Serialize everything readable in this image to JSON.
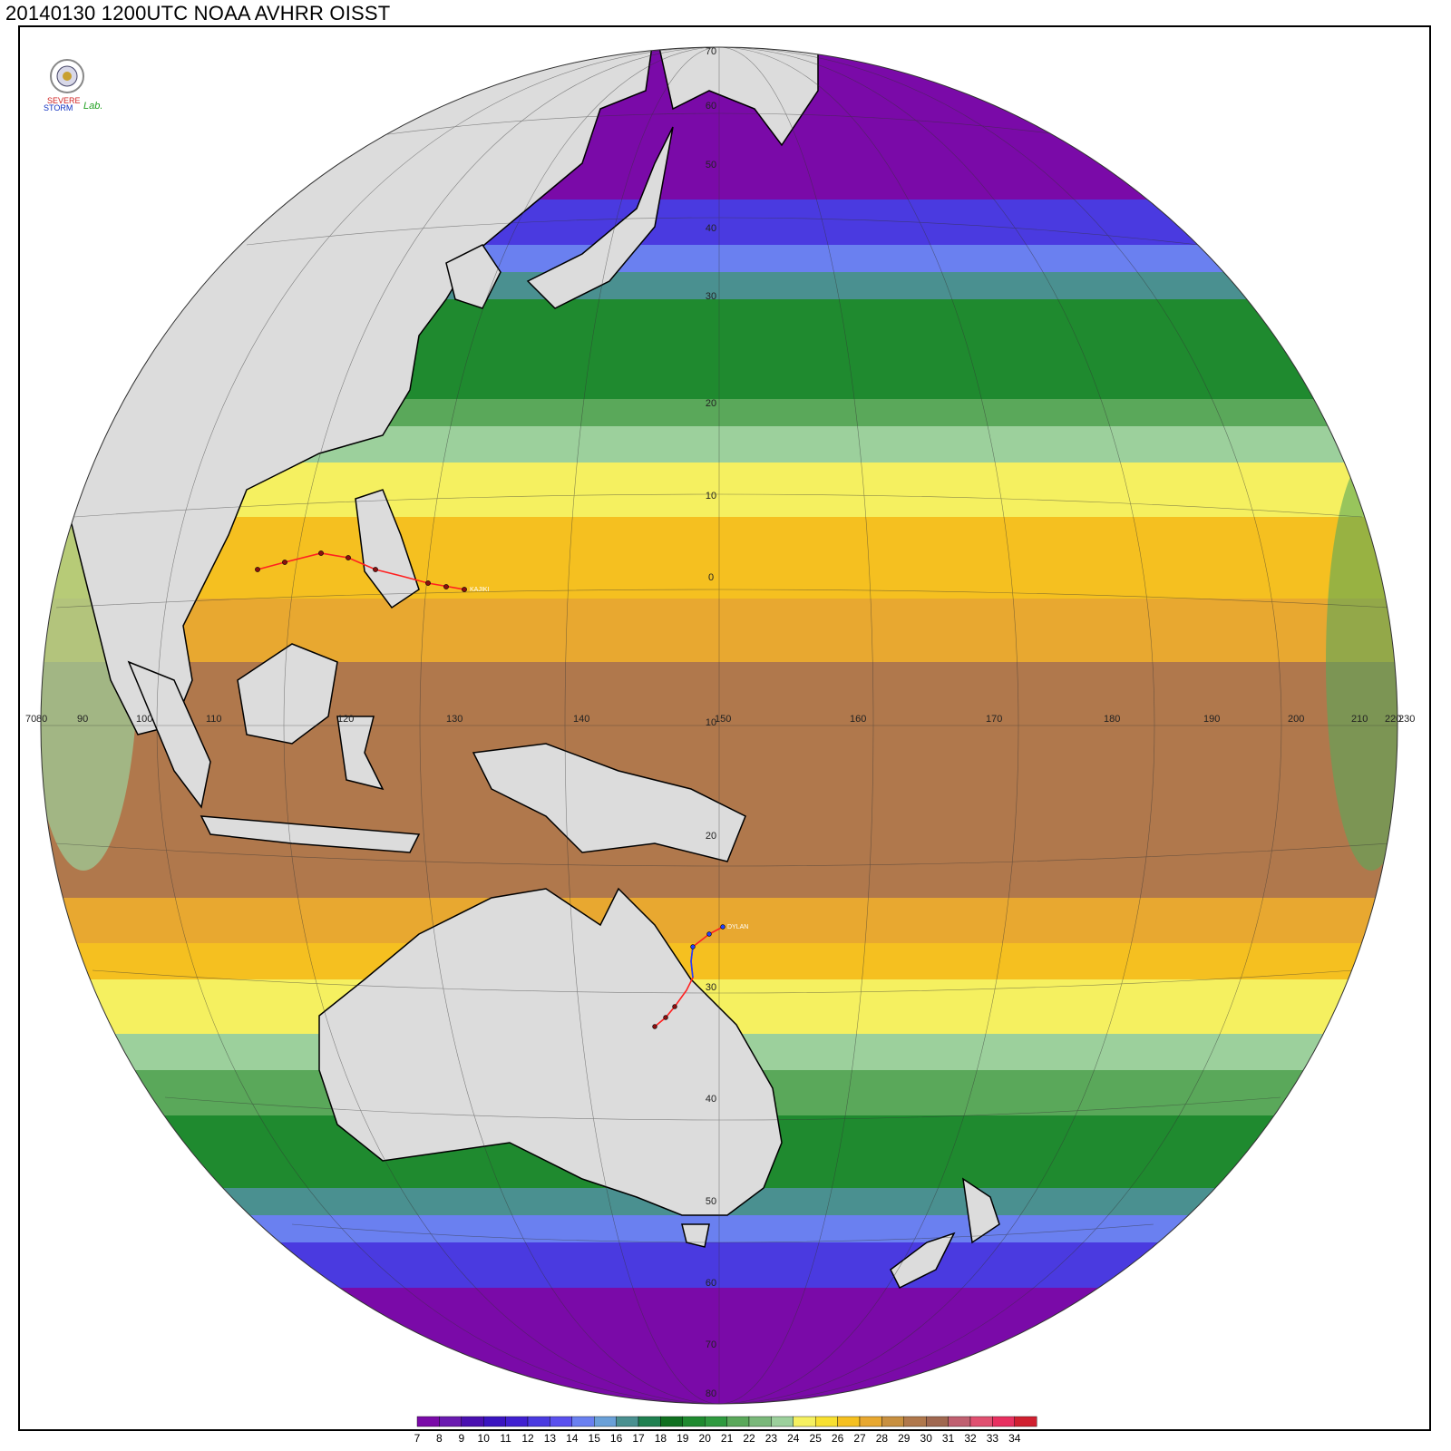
{
  "title": "20140130 1200UTC NOAA AVHRR OISST",
  "logo": {
    "text_top": "SEVERE",
    "text_bottom": "STORM",
    "text_right": "Lab."
  },
  "colorbar": {
    "labels": [
      "7",
      "8",
      "9",
      "10",
      "11",
      "12",
      "13",
      "14",
      "15",
      "16",
      "17",
      "18",
      "19",
      "20",
      "21",
      "22",
      "23",
      "24",
      "25",
      "26",
      "27",
      "28",
      "29",
      "30",
      "31",
      "32",
      "33",
      "34"
    ],
    "colors": [
      "#7a0aa8",
      "#6a1ab0",
      "#4a10b0",
      "#3a14c0",
      "#4020d0",
      "#4a3ae0",
      "#5a50ee",
      "#6a80f0",
      "#6aa0d8",
      "#4a9090",
      "#208050",
      "#107020",
      "#1f8a2f",
      "#2f9a3f",
      "#5aa85a",
      "#7ab87a",
      "#9cd09c",
      "#f5f060",
      "#f8e030",
      "#f5c020",
      "#e8a830",
      "#c89040",
      "#b0784c",
      "#a06850",
      "#c06070",
      "#e05070",
      "#e83060",
      "#d02030"
    ]
  },
  "lat_labels": [
    "70",
    "60",
    "50",
    "40",
    "30",
    "20",
    "10",
    "0",
    "10",
    "20",
    "30",
    "40",
    "50",
    "60",
    "70",
    "80"
  ],
  "lon_labels": [
    "70",
    "80",
    "90",
    "100",
    "110",
    "120",
    "130",
    "140",
    "150",
    "160",
    "170",
    "180",
    "190",
    "200",
    "210",
    "220",
    "230"
  ],
  "storms": [
    {
      "name": "KAJIKI",
      "color": "#ff2020"
    },
    {
      "name": "DYLAN",
      "color": "#ff2020"
    }
  ]
}
